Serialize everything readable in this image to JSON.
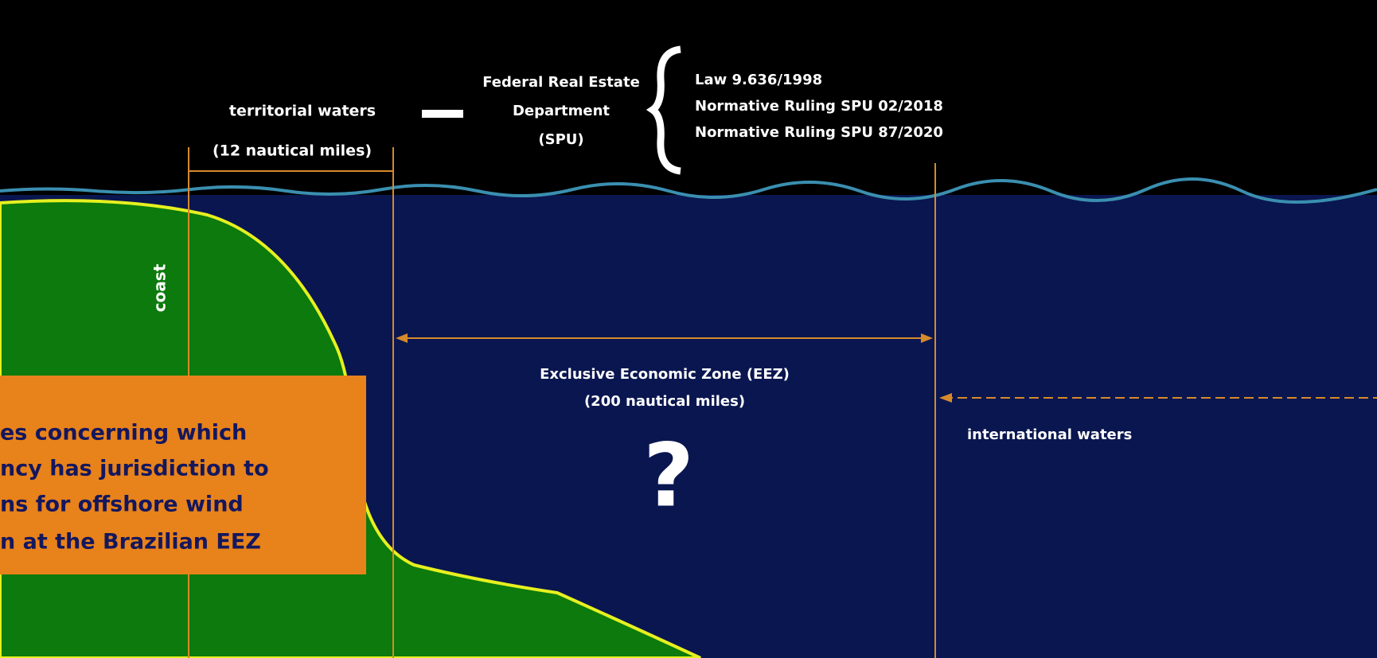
{
  "territorial": {
    "label": "territorial waters",
    "distance": "(12 nautical miles)"
  },
  "agency": {
    "lines": [
      "Federal Real Estate",
      "Department",
      "(SPU)"
    ]
  },
  "laws": [
    "Law 9.636/1998",
    "Normative Ruling SPU 02/2018",
    "Normative Ruling SPU 87/2020"
  ],
  "coast": "coast",
  "eez": {
    "label": "Exclusive Economic Zone (EEZ)",
    "distance": "(200 nautical miles)",
    "mark": "?"
  },
  "international": "international waters",
  "callout": {
    "lines": [
      "es concerning which",
      "ncy has jurisdiction to",
      "ns for offshore wind",
      "n at the Brazilian EEZ"
    ]
  }
}
